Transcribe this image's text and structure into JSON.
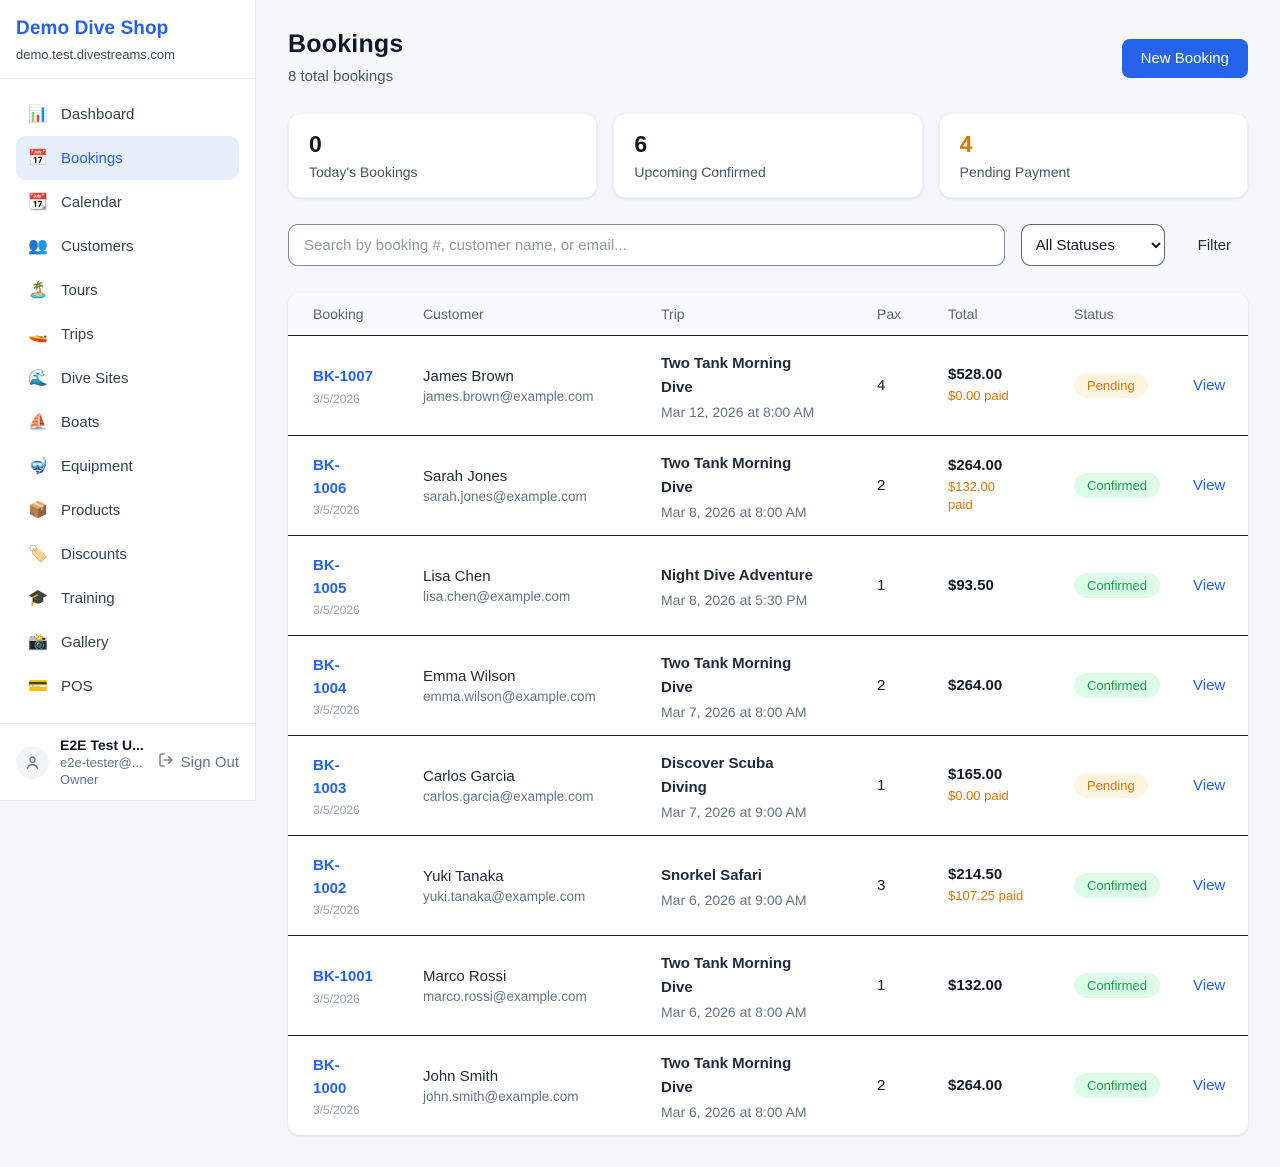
{
  "sidebar": {
    "brand": {
      "name": "Demo Dive Shop",
      "domain": "demo.test.divestreams.com"
    },
    "items": [
      {
        "id": "dashboard",
        "icon": "📊",
        "label": "Dashboard",
        "active": false
      },
      {
        "id": "bookings",
        "icon": "📅",
        "label": "Bookings",
        "active": true
      },
      {
        "id": "calendar",
        "icon": "📆",
        "label": "Calendar",
        "active": false
      },
      {
        "id": "customers",
        "icon": "👥",
        "label": "Customers",
        "active": false
      },
      {
        "id": "tours",
        "icon": "🏝️",
        "label": "Tours",
        "active": false
      },
      {
        "id": "trips",
        "icon": "🚤",
        "label": "Trips",
        "active": false
      },
      {
        "id": "dive-sites",
        "icon": "🌊",
        "label": "Dive Sites",
        "active": false
      },
      {
        "id": "boats",
        "icon": "⛵",
        "label": "Boats",
        "active": false
      },
      {
        "id": "equipment",
        "icon": "🤿",
        "label": "Equipment",
        "active": false
      },
      {
        "id": "products",
        "icon": "📦",
        "label": "Products",
        "active": false
      },
      {
        "id": "discounts",
        "icon": "🏷️",
        "label": "Discounts",
        "active": false
      },
      {
        "id": "training",
        "icon": "🎓",
        "label": "Training",
        "active": false
      },
      {
        "id": "gallery",
        "icon": "📸",
        "label": "Gallery",
        "active": false
      },
      {
        "id": "pos",
        "icon": "💳",
        "label": "POS",
        "active": false
      }
    ],
    "user": {
      "name": "E2E Test U...",
      "email": "e2e-tester@...",
      "role": "Owner",
      "sign_out_label": "Sign Out"
    }
  },
  "header": {
    "title": "Bookings",
    "subtitle": "8 total bookings",
    "new_booking_label": "New Booking"
  },
  "stats": [
    {
      "value": "0",
      "label": "Today's Bookings",
      "color": "#0f172a"
    },
    {
      "value": "6",
      "label": "Upcoming Confirmed",
      "color": "#0f172a"
    },
    {
      "value": "4",
      "label": "Pending Payment",
      "color": "#d97706"
    }
  ],
  "filters": {
    "search_placeholder": "Search by booking #, customer name, or email...",
    "status_selected": "All Statuses",
    "filter_label": "Filter"
  },
  "table": {
    "columns": [
      "Booking",
      "Customer",
      "Trip",
      "Pax",
      "Total",
      "Status"
    ],
    "rows": [
      {
        "booking_id": "BK-1007",
        "booking_date": "3/5/2026",
        "customer_name": "James Brown",
        "customer_email": "james.brown@example.com",
        "trip_name": "Two Tank Morning\nDive",
        "trip_datetime": "Mar 12, 2026 at 8:00 AM",
        "pax": "4",
        "total": "$528.00",
        "paid": "$0.00 paid",
        "status": "Pending",
        "action": "View"
      },
      {
        "booking_id": "BK-\n1006",
        "booking_date": "3/5/2026",
        "customer_name": "Sarah Jones",
        "customer_email": "sarah.jones@example.com",
        "trip_name": "Two Tank Morning\nDive",
        "trip_datetime": "Mar 8, 2026 at 8:00 AM",
        "pax": "2",
        "total": "$264.00",
        "paid": "$132.00\npaid",
        "status": "Confirmed",
        "action": "View"
      },
      {
        "booking_id": "BK-\n1005",
        "booking_date": "3/5/2026",
        "customer_name": "Lisa Chen",
        "customer_email": "lisa.chen@example.com",
        "trip_name": "Night Dive Adventure",
        "trip_datetime": "Mar 8, 2026 at 5:30 PM",
        "pax": "1",
        "total": "$93.50",
        "paid": "",
        "status": "Confirmed",
        "action": "View"
      },
      {
        "booking_id": "BK-\n1004",
        "booking_date": "3/5/2026",
        "customer_name": "Emma Wilson",
        "customer_email": "emma.wilson@example.com",
        "trip_name": "Two Tank Morning\nDive",
        "trip_datetime": "Mar 7, 2026 at 8:00 AM",
        "pax": "2",
        "total": "$264.00",
        "paid": "",
        "status": "Confirmed",
        "action": "View"
      },
      {
        "booking_id": "BK-\n1003",
        "booking_date": "3/5/2026",
        "customer_name": "Carlos Garcia",
        "customer_email": "carlos.garcia@example.com",
        "trip_name": "Discover Scuba\nDiving",
        "trip_datetime": "Mar 7, 2026 at 9:00 AM",
        "pax": "1",
        "total": "$165.00",
        "paid": "$0.00 paid",
        "status": "Pending",
        "action": "View"
      },
      {
        "booking_id": "BK-\n1002",
        "booking_date": "3/5/2026",
        "customer_name": "Yuki Tanaka",
        "customer_email": "yuki.tanaka@example.com",
        "trip_name": "Snorkel Safari",
        "trip_datetime": "Mar 6, 2026 at 9:00 AM",
        "pax": "3",
        "total": "$214.50",
        "paid": "$107.25 paid",
        "status": "Confirmed",
        "action": "View"
      },
      {
        "booking_id": "BK-1001",
        "booking_date": "3/5/2026",
        "customer_name": "Marco Rossi",
        "customer_email": "marco.rossi@example.com",
        "trip_name": "Two Tank Morning\nDive",
        "trip_datetime": "Mar 6, 2026 at 8:00 AM",
        "pax": "1",
        "total": "$132.00",
        "paid": "",
        "status": "Confirmed",
        "action": "View"
      },
      {
        "booking_id": "BK-\n1000",
        "booking_date": "3/5/2026",
        "customer_name": "John Smith",
        "customer_email": "john.smith@example.com",
        "trip_name": "Two Tank Morning\nDive",
        "trip_datetime": "Mar 6, 2026 at 8:00 AM",
        "pax": "2",
        "total": "$264.00",
        "paid": "",
        "status": "Confirmed",
        "action": "View"
      }
    ]
  },
  "colors": {
    "brand_blue": "#2563eb",
    "pending_text": "#d97706",
    "pending_bg": "#fdf5e0",
    "confirmed_text": "#16a34a",
    "confirmed_bg": "#dcfce7",
    "page_bg": "#f5f7fa"
  }
}
